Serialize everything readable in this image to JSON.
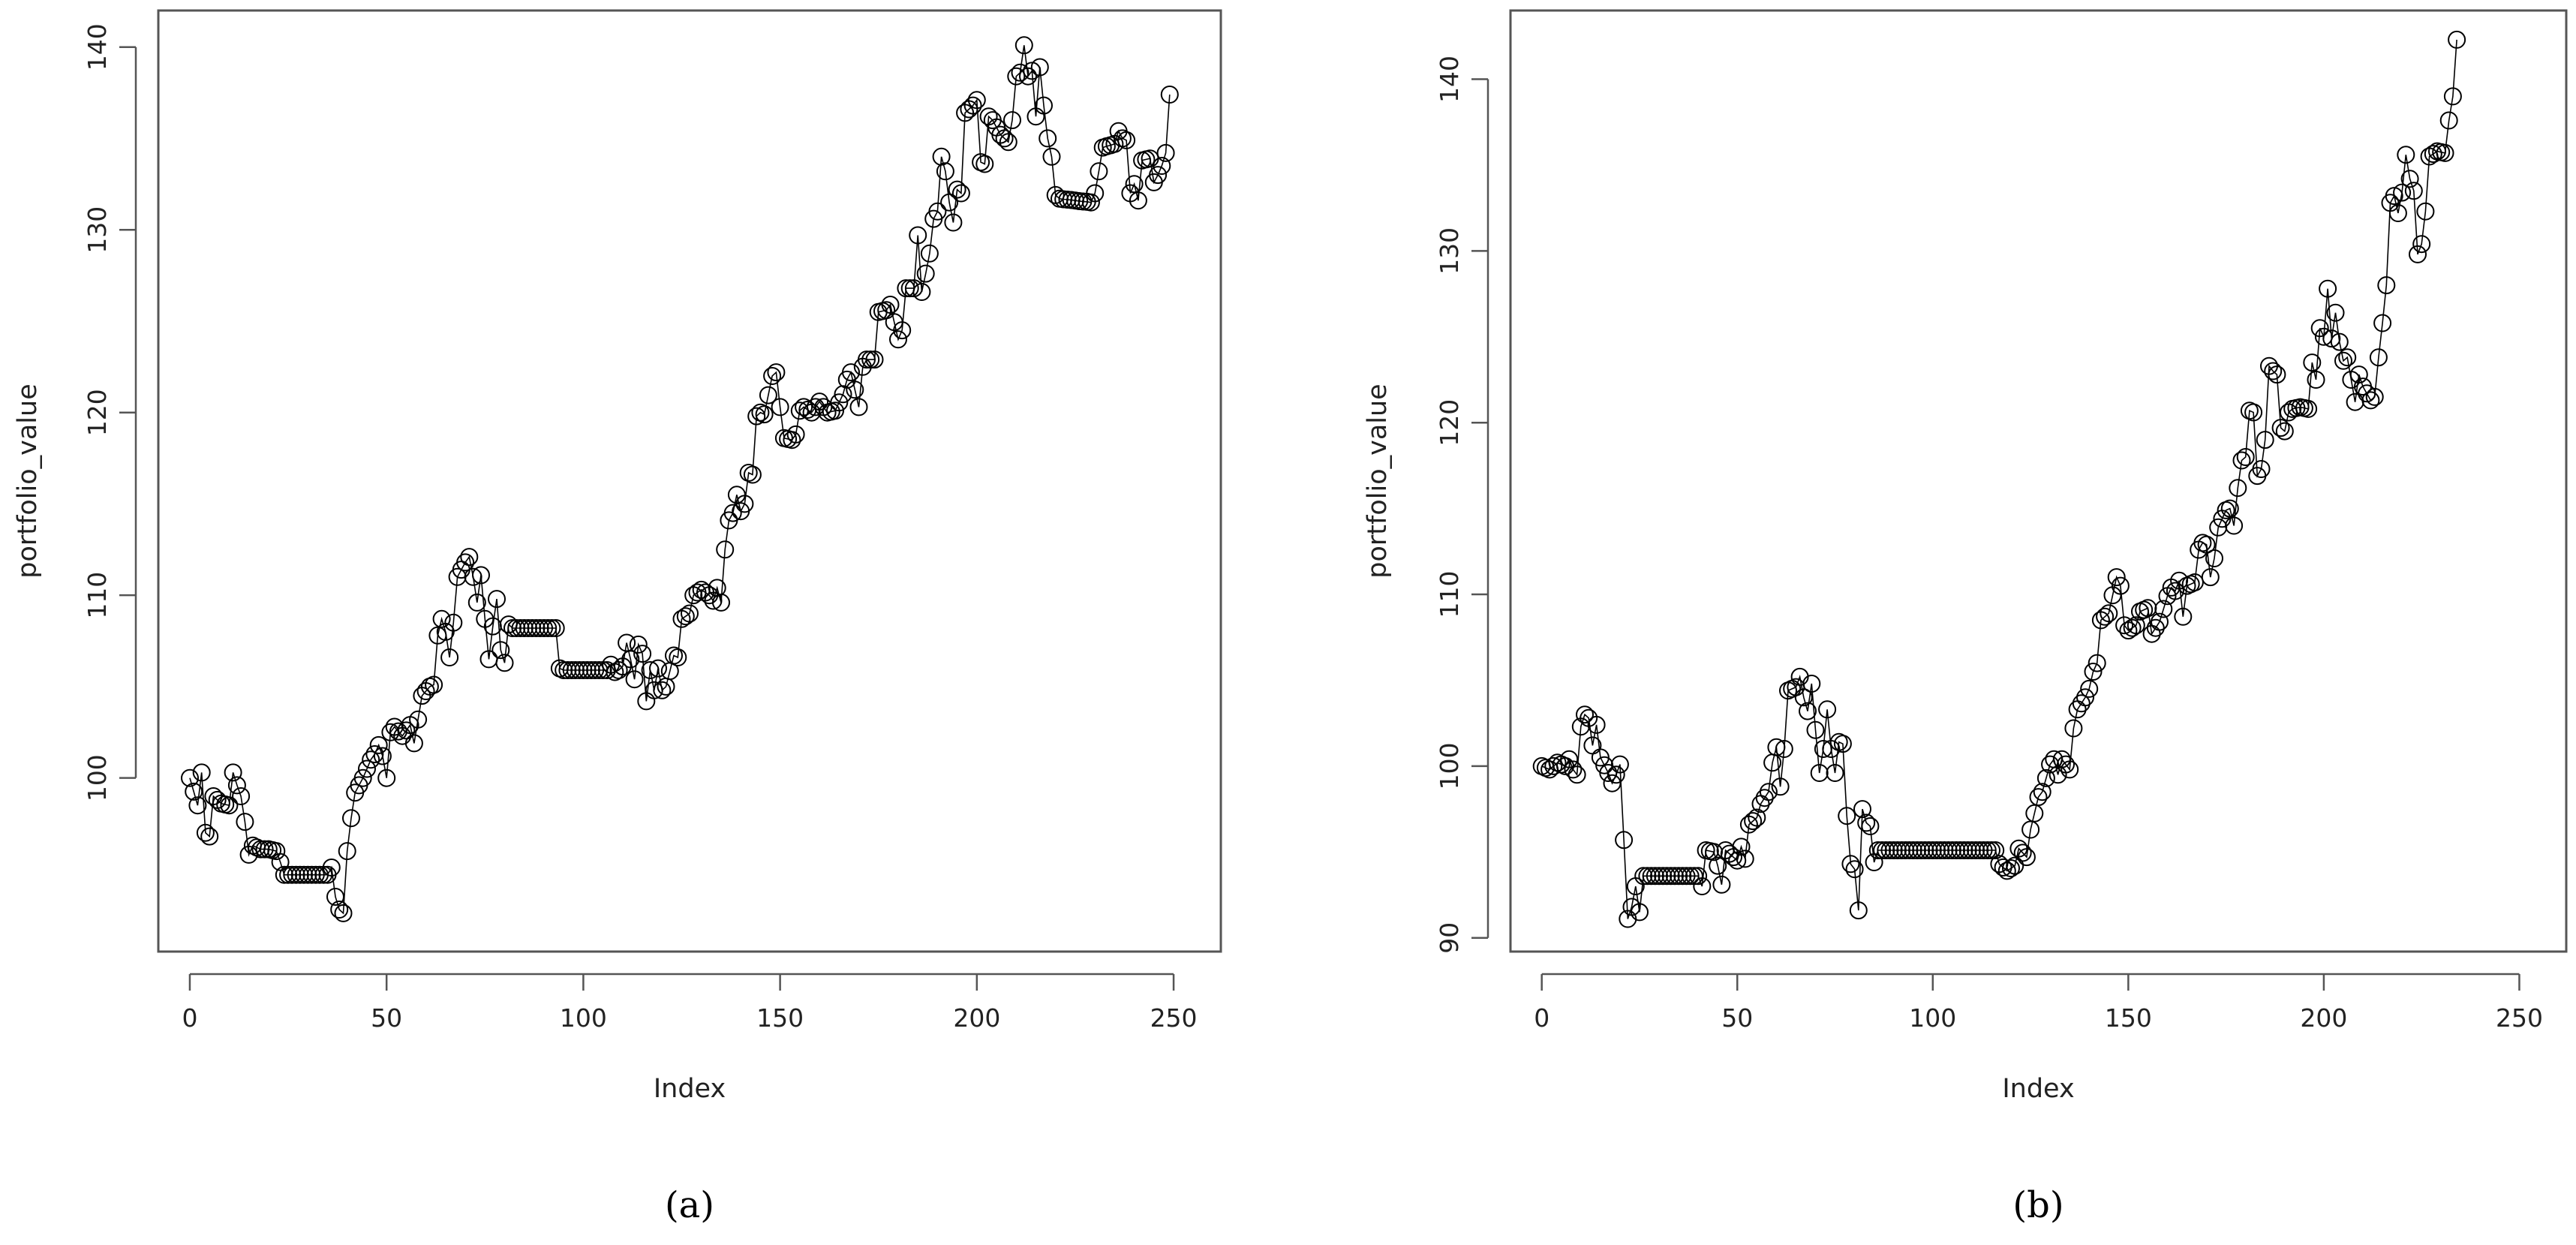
{
  "chart_data": [
    {
      "type": "scatter",
      "caption": "(a)",
      "title": "",
      "xlabel": "Index",
      "ylabel": "portfolio_value",
      "xlim": [
        -8,
        262
      ],
      "ylim": [
        90.5,
        142
      ],
      "xticks": [
        0,
        50,
        100,
        150,
        200,
        250
      ],
      "yticks": [
        100,
        110,
        120,
        130,
        140
      ],
      "point_style": "open-circle",
      "connected": true,
      "grid": false,
      "legend": "none",
      "keypoints": [
        [
          0,
          100.0
        ],
        [
          2,
          98.5
        ],
        [
          3,
          100.3
        ],
        [
          4,
          97.0
        ],
        [
          5,
          96.8
        ],
        [
          6,
          99.0
        ],
        [
          8,
          98.6
        ],
        [
          10,
          98.5
        ],
        [
          11,
          100.3
        ],
        [
          12,
          99.6
        ],
        [
          13,
          99.0
        ],
        [
          14,
          97.6
        ],
        [
          15,
          95.8
        ],
        [
          16,
          96.3
        ],
        [
          18,
          96.1
        ],
        [
          20,
          96.1
        ],
        [
          22,
          96.0
        ],
        [
          23,
          95.4
        ],
        [
          24,
          94.7
        ],
        [
          35,
          94.7
        ],
        [
          36,
          95.1
        ],
        [
          37,
          93.5
        ],
        [
          38,
          92.8
        ],
        [
          39,
          92.6
        ],
        [
          40,
          96.0
        ],
        [
          41,
          97.8
        ],
        [
          42,
          99.2
        ],
        [
          44,
          100.0
        ],
        [
          46,
          101.0
        ],
        [
          47,
          101.3
        ],
        [
          48,
          101.8
        ],
        [
          49,
          101.2
        ],
        [
          50,
          100.0
        ],
        [
          51,
          102.5
        ],
        [
          52,
          102.8
        ],
        [
          54,
          102.3
        ],
        [
          56,
          102.9
        ],
        [
          57,
          101.9
        ],
        [
          59,
          104.5
        ],
        [
          61,
          105.0
        ],
        [
          62,
          105.1
        ],
        [
          63,
          107.8
        ],
        [
          64,
          108.7
        ],
        [
          65,
          108.0
        ],
        [
          66,
          106.6
        ],
        [
          67,
          108.5
        ],
        [
          68,
          111.0
        ],
        [
          70,
          111.8
        ],
        [
          71,
          112.1
        ],
        [
          72,
          111.0
        ],
        [
          73,
          109.6
        ],
        [
          74,
          111.1
        ],
        [
          75,
          108.7
        ],
        [
          76,
          106.5
        ],
        [
          77,
          108.3
        ],
        [
          78,
          109.8
        ],
        [
          79,
          107.0
        ],
        [
          80,
          106.3
        ],
        [
          81,
          108.4
        ],
        [
          82,
          108.2
        ],
        [
          93,
          108.2
        ],
        [
          94,
          106.0
        ],
        [
          95,
          105.9
        ],
        [
          106,
          105.9
        ],
        [
          107,
          106.2
        ],
        [
          108,
          105.8
        ],
        [
          109,
          105.9
        ],
        [
          110,
          106.1
        ],
        [
          111,
          107.4
        ],
        [
          112,
          106.5
        ],
        [
          113,
          105.4
        ],
        [
          114,
          107.3
        ],
        [
          115,
          106.8
        ],
        [
          116,
          104.2
        ],
        [
          117,
          105.9
        ],
        [
          118,
          104.8
        ],
        [
          119,
          106.0
        ],
        [
          120,
          104.8
        ],
        [
          121,
          105.0
        ],
        [
          123,
          106.7
        ],
        [
          124,
          106.6
        ],
        [
          125,
          108.7
        ],
        [
          127,
          109.0
        ],
        [
          128,
          110.0
        ],
        [
          130,
          110.3
        ],
        [
          132,
          110.0
        ],
        [
          133,
          109.7
        ],
        [
          134,
          110.4
        ],
        [
          135,
          109.6
        ],
        [
          136,
          112.5
        ],
        [
          137,
          114.1
        ],
        [
          138,
          114.5
        ],
        [
          139,
          115.5
        ],
        [
          140,
          114.6
        ],
        [
          141,
          115.0
        ],
        [
          142,
          116.7
        ],
        [
          143,
          116.6
        ],
        [
          144,
          119.8
        ],
        [
          145,
          120.0
        ],
        [
          146,
          119.9
        ],
        [
          148,
          122.0
        ],
        [
          149,
          122.2
        ],
        [
          150,
          120.3
        ],
        [
          151,
          118.6
        ],
        [
          153,
          118.5
        ],
        [
          154,
          118.8
        ],
        [
          155,
          120.1
        ],
        [
          156,
          120.3
        ],
        [
          158,
          120.0
        ],
        [
          160,
          120.6
        ],
        [
          162,
          120.0
        ],
        [
          164,
          120.1
        ],
        [
          166,
          121.0
        ],
        [
          167,
          121.8
        ],
        [
          168,
          122.2
        ],
        [
          170,
          120.3
        ],
        [
          171,
          122.5
        ],
        [
          172,
          122.9
        ],
        [
          174,
          122.9
        ],
        [
          175,
          125.5
        ],
        [
          177,
          125.6
        ],
        [
          178,
          125.9
        ],
        [
          180,
          124.0
        ],
        [
          181,
          124.5
        ],
        [
          182,
          126.8
        ],
        [
          184,
          126.8
        ],
        [
          185,
          129.7
        ],
        [
          186,
          126.6
        ],
        [
          187,
          127.6
        ],
        [
          188,
          128.7
        ],
        [
          189,
          130.6
        ],
        [
          190,
          131.0
        ],
        [
          191,
          134.0
        ],
        [
          192,
          133.2
        ],
        [
          193,
          131.5
        ],
        [
          194,
          130.4
        ],
        [
          195,
          132.2
        ],
        [
          196,
          132.0
        ],
        [
          197,
          136.4
        ],
        [
          199,
          136.8
        ],
        [
          200,
          137.1
        ],
        [
          201,
          133.7
        ],
        [
          202,
          133.6
        ],
        [
          203,
          136.2
        ],
        [
          204,
          136.0
        ],
        [
          206,
          135.2
        ],
        [
          208,
          134.8
        ],
        [
          209,
          136.0
        ],
        [
          210,
          138.4
        ],
        [
          211,
          138.6
        ],
        [
          212,
          140.1
        ],
        [
          213,
          138.4
        ],
        [
          214,
          138.7
        ],
        [
          215,
          136.2
        ],
        [
          216,
          138.9
        ],
        [
          217,
          136.8
        ],
        [
          218,
          135.0
        ],
        [
          219,
          134.0
        ],
        [
          220,
          131.9
        ],
        [
          221,
          131.7
        ],
        [
          229,
          131.5
        ],
        [
          230,
          132.0
        ],
        [
          231,
          133.2
        ],
        [
          232,
          134.5
        ],
        [
          235,
          134.7
        ],
        [
          236,
          135.4
        ],
        [
          237,
          135.0
        ],
        [
          238,
          134.9
        ],
        [
          239,
          132.0
        ],
        [
          240,
          132.5
        ],
        [
          241,
          131.6
        ],
        [
          242,
          133.8
        ],
        [
          244,
          133.9
        ],
        [
          245,
          132.6
        ],
        [
          246,
          133.0
        ],
        [
          247,
          133.5
        ],
        [
          248,
          134.2
        ],
        [
          249,
          137.4
        ]
      ]
    },
    {
      "type": "scatter",
      "caption": "(b)",
      "title": "",
      "xlabel": "Index",
      "ylabel": "portfolio_value",
      "xlim": [
        -8,
        262
      ],
      "ylim": [
        89.2,
        144
      ],
      "xticks": [
        0,
        50,
        100,
        150,
        200,
        250
      ],
      "yticks": [
        90,
        100,
        110,
        120,
        130,
        140
      ],
      "point_style": "open-circle",
      "connected": true,
      "grid": false,
      "legend": "none",
      "keypoints": [
        [
          0,
          100.0
        ],
        [
          2,
          99.8
        ],
        [
          4,
          100.2
        ],
        [
          6,
          100.0
        ],
        [
          7,
          100.4
        ],
        [
          8,
          99.8
        ],
        [
          9,
          99.5
        ],
        [
          10,
          102.3
        ],
        [
          11,
          103.0
        ],
        [
          12,
          102.8
        ],
        [
          13,
          101.2
        ],
        [
          14,
          102.4
        ],
        [
          15,
          100.5
        ],
        [
          17,
          99.6
        ],
        [
          18,
          99.0
        ],
        [
          19,
          99.5
        ],
        [
          20,
          100.1
        ],
        [
          21,
          95.7
        ],
        [
          22,
          91.1
        ],
        [
          23,
          91.8
        ],
        [
          24,
          93.0
        ],
        [
          25,
          91.5
        ],
        [
          26,
          93.6
        ],
        [
          40,
          93.6
        ],
        [
          41,
          93.0
        ],
        [
          42,
          95.1
        ],
        [
          44,
          95.0
        ],
        [
          45,
          94.2
        ],
        [
          46,
          93.1
        ],
        [
          47,
          95.1
        ],
        [
          48,
          94.9
        ],
        [
          50,
          94.5
        ],
        [
          51,
          95.3
        ],
        [
          52,
          94.6
        ],
        [
          53,
          96.6
        ],
        [
          55,
          97.0
        ],
        [
          56,
          97.8
        ],
        [
          58,
          98.5
        ],
        [
          59,
          100.2
        ],
        [
          60,
          101.1
        ],
        [
          61,
          98.8
        ],
        [
          62,
          101.0
        ],
        [
          63,
          104.4
        ],
        [
          65,
          104.6
        ],
        [
          66,
          105.2
        ],
        [
          67,
          104.0
        ],
        [
          68,
          103.2
        ],
        [
          69,
          104.8
        ],
        [
          70,
          102.1
        ],
        [
          71,
          99.6
        ],
        [
          72,
          101.0
        ],
        [
          73,
          103.3
        ],
        [
          74,
          101.0
        ],
        [
          75,
          99.6
        ],
        [
          76,
          101.4
        ],
        [
          77,
          101.3
        ],
        [
          78,
          97.1
        ],
        [
          79,
          94.3
        ],
        [
          80,
          94.0
        ],
        [
          81,
          91.6
        ],
        [
          82,
          97.5
        ],
        [
          83,
          96.7
        ],
        [
          84,
          96.5
        ],
        [
          85,
          94.4
        ],
        [
          86,
          95.1
        ],
        [
          116,
          95.1
        ],
        [
          117,
          94.3
        ],
        [
          119,
          93.9
        ],
        [
          121,
          94.2
        ],
        [
          122,
          95.2
        ],
        [
          124,
          94.7
        ],
        [
          125,
          96.3
        ],
        [
          127,
          98.2
        ],
        [
          128,
          98.5
        ],
        [
          130,
          100.1
        ],
        [
          131,
          100.4
        ],
        [
          132,
          99.5
        ],
        [
          133,
          100.4
        ],
        [
          135,
          99.8
        ],
        [
          136,
          102.2
        ],
        [
          137,
          103.3
        ],
        [
          139,
          104.0
        ],
        [
          140,
          104.5
        ],
        [
          141,
          105.5
        ],
        [
          142,
          106.0
        ],
        [
          143,
          108.5
        ],
        [
          145,
          108.9
        ],
        [
          147,
          111.0
        ],
        [
          148,
          110.5
        ],
        [
          149,
          108.2
        ],
        [
          150,
          107.9
        ],
        [
          152,
          108.2
        ],
        [
          153,
          109.0
        ],
        [
          155,
          109.2
        ],
        [
          156,
          107.7
        ],
        [
          158,
          108.4
        ],
        [
          160,
          109.9
        ],
        [
          161,
          110.4
        ],
        [
          162,
          110.2
        ],
        [
          163,
          110.8
        ],
        [
          164,
          108.7
        ],
        [
          165,
          110.5
        ],
        [
          167,
          110.7
        ],
        [
          168,
          112.6
        ],
        [
          169,
          113.0
        ],
        [
          170,
          112.9
        ],
        [
          171,
          111.0
        ],
        [
          172,
          112.1
        ],
        [
          173,
          113.9
        ],
        [
          174,
          114.4
        ],
        [
          175,
          114.9
        ],
        [
          176,
          115.0
        ],
        [
          177,
          114.0
        ],
        [
          178,
          116.2
        ],
        [
          179,
          117.8
        ],
        [
          180,
          118.0
        ],
        [
          181,
          120.7
        ],
        [
          182,
          120.6
        ],
        [
          183,
          116.9
        ],
        [
          184,
          117.3
        ],
        [
          185,
          119.0
        ],
        [
          186,
          123.3
        ],
        [
          187,
          123.0
        ],
        [
          188,
          122.8
        ],
        [
          189,
          119.7
        ],
        [
          190,
          119.5
        ],
        [
          191,
          120.6
        ],
        [
          192,
          120.8
        ],
        [
          194,
          120.9
        ],
        [
          196,
          120.8
        ],
        [
          197,
          123.5
        ],
        [
          198,
          122.5
        ],
        [
          199,
          125.5
        ],
        [
          200,
          125.0
        ],
        [
          201,
          127.8
        ],
        [
          202,
          124.9
        ],
        [
          203,
          126.4
        ],
        [
          204,
          124.7
        ],
        [
          205,
          123.6
        ],
        [
          206,
          123.8
        ],
        [
          207,
          122.5
        ],
        [
          208,
          121.2
        ],
        [
          209,
          122.8
        ],
        [
          210,
          122.1
        ],
        [
          212,
          121.3
        ],
        [
          213,
          121.5
        ],
        [
          214,
          123.8
        ],
        [
          215,
          125.8
        ],
        [
          216,
          128.0
        ],
        [
          217,
          132.8
        ],
        [
          218,
          133.2
        ],
        [
          219,
          132.2
        ],
        [
          220,
          133.4
        ],
        [
          221,
          135.6
        ],
        [
          222,
          134.2
        ],
        [
          223,
          133.5
        ],
        [
          224,
          129.8
        ],
        [
          225,
          130.4
        ],
        [
          226,
          132.3
        ],
        [
          227,
          135.5
        ],
        [
          229,
          135.8
        ],
        [
          231,
          135.7
        ],
        [
          232,
          137.6
        ],
        [
          233,
          139.0
        ],
        [
          234,
          142.3
        ]
      ]
    }
  ]
}
